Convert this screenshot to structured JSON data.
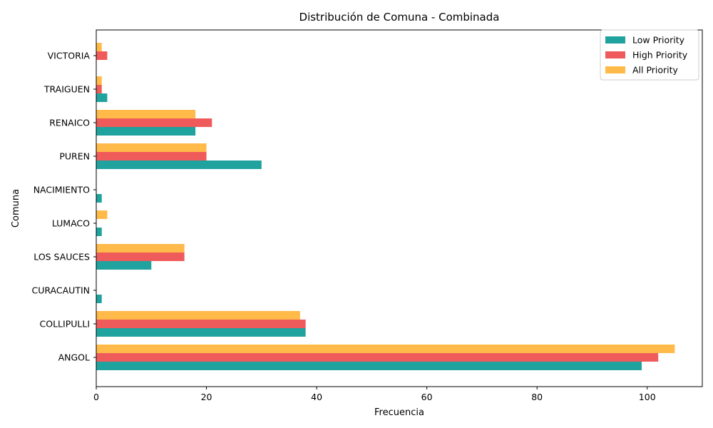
{
  "chart_data": {
    "type": "bar",
    "orientation": "horizontal",
    "title": "Distribución de Comuna - Combinada",
    "xlabel": "Frecuencia",
    "ylabel": "Comuna",
    "categories": [
      "ANGOL",
      "COLLIPULLI",
      "CURACAUTIN",
      "LOS SAUCES",
      "LUMACO",
      "NACIMIENTO",
      "PUREN",
      "RENAICO",
      "TRAIGUEN",
      "VICTORIA"
    ],
    "series": [
      {
        "name": "Low Priority",
        "color": "#20a39e",
        "values": [
          99,
          38,
          1,
          10,
          1,
          1,
          30,
          18,
          2,
          0
        ]
      },
      {
        "name": "High Priority",
        "color": "#ef5b5b",
        "values": [
          102,
          38,
          0,
          16,
          0,
          0,
          20,
          21,
          1,
          2
        ]
      },
      {
        "name": "All Priority",
        "color": "#ffba49",
        "values": [
          105,
          37,
          0,
          16,
          2,
          0,
          20,
          18,
          1,
          1
        ]
      }
    ],
    "xlim": [
      0,
      110
    ],
    "xticks": [
      0,
      20,
      40,
      60,
      80,
      100
    ],
    "grid": false,
    "legend_position": "top-right"
  }
}
